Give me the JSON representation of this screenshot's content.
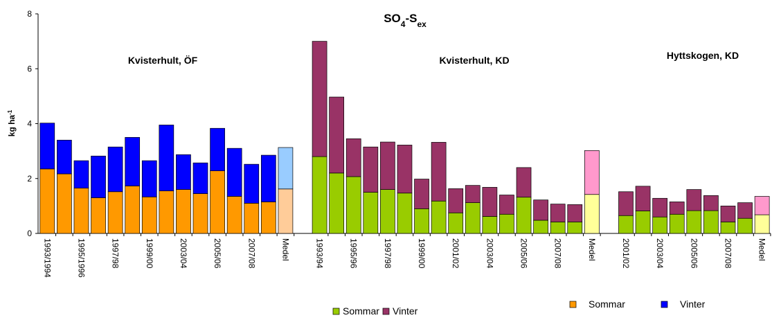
{
  "chart_data": {
    "type": "bar",
    "stacked": true,
    "title_parts": [
      {
        "text": "SO"
      },
      {
        "text": "4",
        "sub": true
      },
      {
        "text": "-S"
      },
      {
        "text": "ex",
        "sub": true
      }
    ],
    "ylabel_parts": [
      {
        "text": "kg ha"
      },
      {
        "text": "-1",
        "sup": true
      }
    ],
    "ylim": [
      0,
      8
    ],
    "yticks": [
      0,
      2,
      4,
      6,
      8
    ],
    "groups": [
      {
        "label": "Kvisterhult, ÖF",
        "legend": true,
        "categories": [
          "1993/1994",
          null,
          "1995/1996",
          null,
          "1997/98",
          null,
          "1999/00",
          null,
          "2003/04",
          null,
          "2005/06",
          null,
          "2007/08",
          null,
          "Medel"
        ],
        "series": [
          {
            "name": "Sommar",
            "color": "#ff9900",
            "medel_color": "#ffcc99",
            "values": [
              2.35,
              2.17,
              1.65,
              1.3,
              1.52,
              1.73,
              1.33,
              1.55,
              1.6,
              1.45,
              2.28,
              1.35,
              1.1,
              1.15,
              1.62
            ]
          },
          {
            "name": "Vinter",
            "color": "#0000ff",
            "medel_color": "#99ccff",
            "values": [
              1.67,
              1.23,
              1.0,
              1.52,
              1.63,
              1.77,
              1.32,
              2.4,
              1.27,
              1.12,
              1.55,
              1.75,
              1.42,
              1.7,
              1.51
            ]
          }
        ]
      },
      {
        "label": "Kvisterhult, KD",
        "legend": true,
        "categories": [
          "1993/94",
          null,
          "1995/96",
          null,
          "1997/98",
          null,
          "1999/00",
          null,
          "2001/02",
          null,
          "2003/04",
          null,
          "2005/06",
          null,
          "2007/08",
          null,
          "Medel"
        ],
        "series": [
          {
            "name": "Sommar",
            "color": "#99cc00",
            "medel_color": "#ffff99",
            "values": [
              2.8,
              2.2,
              2.07,
              1.5,
              1.6,
              1.47,
              0.9,
              1.18,
              0.75,
              1.12,
              0.62,
              0.7,
              1.32,
              0.48,
              0.42,
              0.42,
              1.42
            ]
          },
          {
            "name": "Vinter",
            "color": "#993366",
            "medel_color": "#ff99cc",
            "values": [
              4.2,
              2.77,
              1.38,
              1.65,
              1.73,
              1.75,
              1.08,
              2.14,
              0.88,
              0.63,
              1.06,
              0.7,
              1.08,
              0.74,
              0.65,
              0.63,
              1.6
            ]
          }
        ]
      },
      {
        "label": "Hyttskogen, KD",
        "legend": false,
        "categories": [
          "2001/02",
          null,
          "2003/04",
          null,
          "2005/06",
          null,
          "2007/08",
          null,
          "Medel"
        ],
        "series": [
          {
            "color": "#99cc00",
            "medel_color": "#ffff99",
            "values": [
              0.65,
              0.82,
              0.6,
              0.7,
              0.83,
              0.83,
              0.42,
              0.55,
              0.68
            ]
          },
          {
            "color": "#993366",
            "medel_color": "#ff99cc",
            "values": [
              0.87,
              0.9,
              0.68,
              0.45,
              0.77,
              0.55,
              0.58,
              0.57,
              0.67
            ]
          }
        ]
      }
    ]
  }
}
